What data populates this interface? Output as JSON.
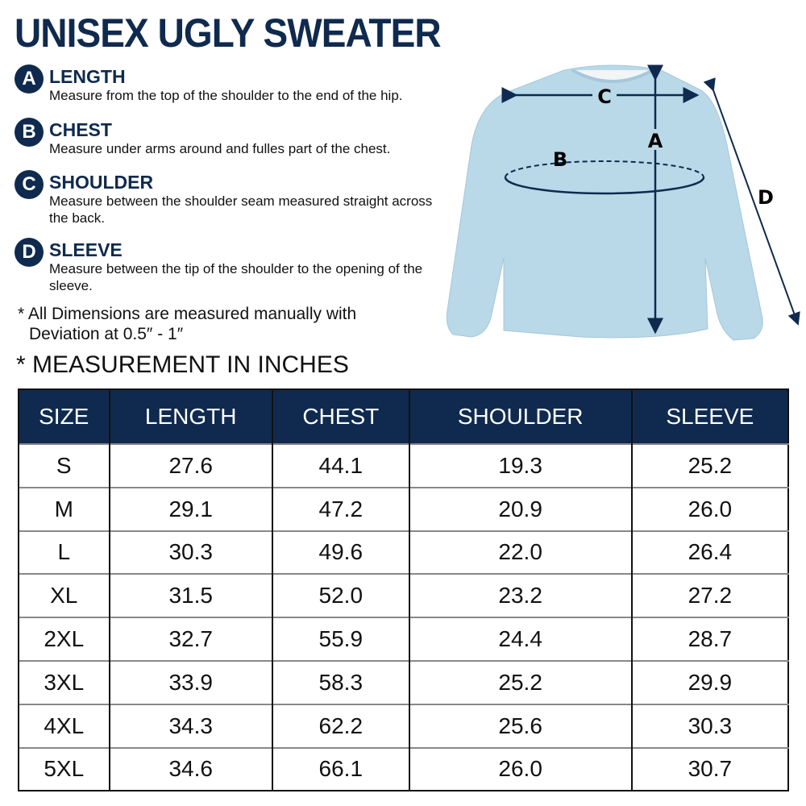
{
  "title": "UNISEX UGLY SWEATER",
  "measures": [
    {
      "letter": "A",
      "name": "LENGTH",
      "desc": "Measure from the top of the shoulder to the end of the hip."
    },
    {
      "letter": "B",
      "name": "CHEST",
      "desc": "Measure under arms around and fulles part of the chest."
    },
    {
      "letter": "C",
      "name": "SHOULDER",
      "desc": "Measure between the shoulder seam measured straight across the back."
    },
    {
      "letter": "D",
      "name": "SLEEVE",
      "desc": "Measure between the tip of the shoulder to the opening of the sleeve."
    }
  ],
  "note_line1": "* All Dimensions are measured manually with",
  "note_line2": "Deviation at 0.5″ - 1″",
  "unit_note": "* MEASUREMENT IN INCHES",
  "diagram_labels": {
    "a": "A",
    "b": "B",
    "c": "C",
    "d": "D"
  },
  "colors": {
    "navy": "#0f2a4e",
    "sweater": "#b9d8e8"
  },
  "table": {
    "headers": [
      "SIZE",
      "LENGTH",
      "CHEST",
      "SHOULDER",
      "SLEEVE"
    ],
    "rows": [
      [
        "S",
        "27.6",
        "44.1",
        "19.3",
        "25.2"
      ],
      [
        "M",
        "29.1",
        "47.2",
        "20.9",
        "26.0"
      ],
      [
        "L",
        "30.3",
        "49.6",
        "22.0",
        "26.4"
      ],
      [
        "XL",
        "31.5",
        "52.0",
        "23.2",
        "27.2"
      ],
      [
        "2XL",
        "32.7",
        "55.9",
        "24.4",
        "28.7"
      ],
      [
        "3XL",
        "33.9",
        "58.3",
        "25.2",
        "29.9"
      ],
      [
        "4XL",
        "34.3",
        "62.2",
        "25.6",
        "30.3"
      ],
      [
        "5XL",
        "34.6",
        "66.1",
        "26.0",
        "30.7"
      ]
    ]
  }
}
